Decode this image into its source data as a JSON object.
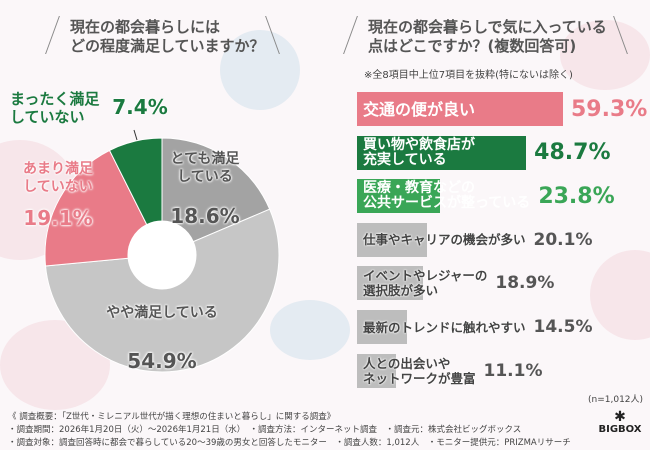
{
  "left": {
    "question": [
      "現在の都会暮らしには",
      "どの程度満足していますか？"
    ]
  },
  "right": {
    "question": [
      "現在の都会暮らしで気に入っている",
      "点はどこですか？(複数回答可)"
    ],
    "note": "※全8項目中上位7項目を抜粋(特にないは除く)",
    "n": "(n=1,012人)"
  },
  "chart_data": [
    {
      "type": "pie",
      "donut": true,
      "start": "top, clockwise",
      "slices": [
        {
          "label": [
            "とても満足",
            "している"
          ],
          "value": 18.6,
          "display": "18.6%",
          "color": "#a3a3a3"
        },
        {
          "label": [
            "やや満足している"
          ],
          "value": 54.9,
          "display": "54.9%",
          "color": "#c6c6c6"
        },
        {
          "label": [
            "あまり満足",
            "していない"
          ],
          "value": 19.1,
          "display": "19.1%",
          "color": "#e97b88"
        },
        {
          "label": [
            "まったく満足",
            "していない"
          ],
          "value": 7.4,
          "display": "7.4%",
          "color": "#1b7a40"
        }
      ]
    },
    {
      "type": "bar",
      "orientation": "horizontal",
      "categories": [
        [
          "交通の便が良い"
        ],
        [
          "買い物や飲食店が",
          "充実している"
        ],
        [
          "医療・教育などの",
          "公共サービスが整っている"
        ],
        [
          "仕事やキャリアの機会が多い"
        ],
        [
          "イベントやレジャーの",
          "選択肢が多い"
        ],
        [
          "最新のトレンドに触れやすい"
        ],
        [
          "人との出会いや",
          "ネットワークが豊富"
        ]
      ],
      "values": [
        59.3,
        48.7,
        23.8,
        20.1,
        18.9,
        14.5,
        11.1
      ],
      "display": [
        "59.3%",
        "48.7%",
        "23.8%",
        "20.1%",
        "18.9%",
        "14.5%",
        "11.1%"
      ],
      "colors": [
        "#e97b88",
        "#1b7a40",
        "#3aa657",
        "#bdbdbd",
        "#bdbdbd",
        "#bdbdbd",
        "#bdbdbd"
      ],
      "value_colors": [
        "#e97b88",
        "#1b7a40",
        "#3aa657",
        "#555555",
        "#555555",
        "#555555",
        "#555555"
      ]
    }
  ],
  "footer": {
    "lines": [
      "《 調査概要：「Z世代・ミレニアル世代が描く理想の住まいと暮らし」に関する調査》",
      "・調査期間：2026年1月20日（火）～2026年1月21日（水）　・調査方法：インターネット調査　・調査元：株式会社ビッグボックス",
      "・調査対象：調査回答時に都会で暮らしている20～39歳の男女と回答したモニター　・調査人数：1,012人　・モニター提供元：PRIZMAリサーチ"
    ],
    "logo": "BIGBOX"
  }
}
